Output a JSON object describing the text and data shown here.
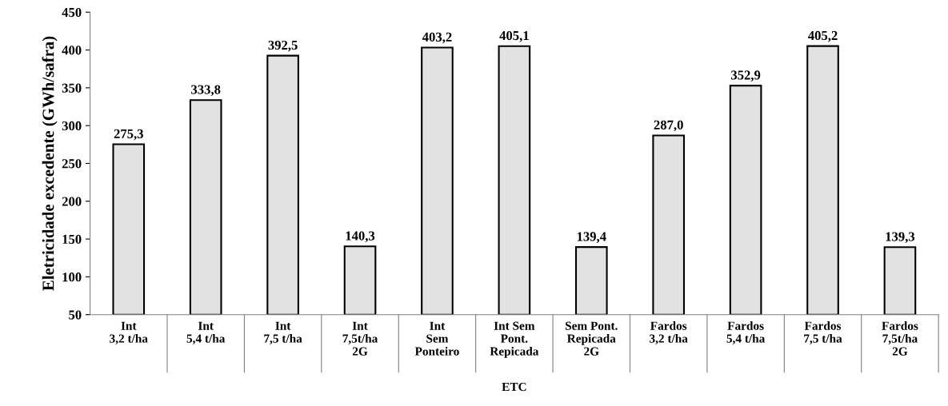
{
  "chart_data": {
    "type": "bar",
    "categories": [
      "Int\n3,2 t/ha",
      "Int\n5,4 t/ha",
      "Int\n7,5 t/ha",
      "Int\n7,5t/ha\n2G",
      "Int\nSem\nPonteiro",
      "Int Sem\nPont.\nRepicada",
      "Sem Pont.\nRepicada\n2G",
      "Fardos\n3,2 t/ha",
      "Fardos\n5,4 t/ha",
      "Fardos\n7,5 t/ha",
      "Fardos\n7,5t/ha\n2G"
    ],
    "values": [
      275.3,
      333.8,
      392.5,
      140.3,
      403.2,
      405.1,
      139.4,
      287.0,
      352.9,
      405.2,
      139.3
    ],
    "value_labels": [
      "275,3",
      "333,8",
      "392,5",
      "140,3",
      "403,2",
      "405,1",
      "139,4",
      "287,0",
      "352,9",
      "405,2",
      "139,3"
    ],
    "color": "#e2e2e2",
    "xlabel": "ETC",
    "ylabel": "Eletricidade excedente (GWh/safra)",
    "ylim": [
      50,
      450
    ],
    "yticks": [
      50,
      100,
      150,
      200,
      250,
      300,
      350,
      400,
      450
    ],
    "grid": false,
    "legend": false
  }
}
